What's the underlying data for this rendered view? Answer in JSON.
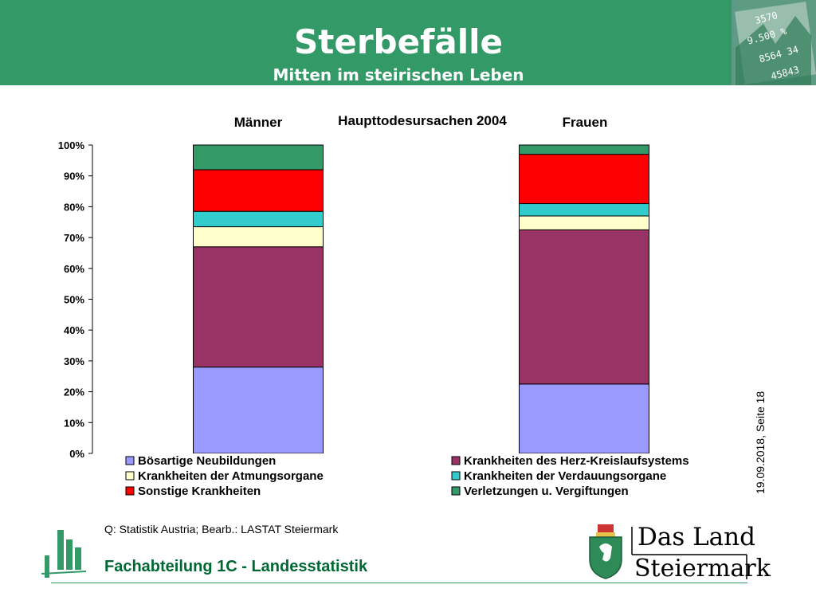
{
  "header": {
    "title": "Sterbefälle",
    "subtitle": "Mitten im steirischen Leben",
    "background": "#339966"
  },
  "chart_data": {
    "type": "bar",
    "stacked": true,
    "percent": true,
    "title": "Haupttodesursachen 2004",
    "categories": [
      "Männer",
      "Frauen"
    ],
    "ylim": [
      0,
      100
    ],
    "yticks": [
      "0%",
      "10%",
      "20%",
      "30%",
      "40%",
      "50%",
      "60%",
      "70%",
      "80%",
      "90%",
      "100%"
    ],
    "grid": false,
    "legend_position": "bottom",
    "series": [
      {
        "name": "Bösartige Neubildungen",
        "color": "#9999ff",
        "values": [
          28,
          22.5
        ]
      },
      {
        "name": "Krankheiten des Herz-Kreislaufsystems",
        "color": "#993366",
        "values": [
          39,
          50
        ]
      },
      {
        "name": "Krankheiten der Atmungsorgane",
        "color": "#ffffcc",
        "values": [
          6.5,
          4.5
        ]
      },
      {
        "name": "Krankheiten  der Verdauungsorgane",
        "color": "#33cccc",
        "values": [
          5,
          4
        ]
      },
      {
        "name": "Sonstige Krankheiten",
        "color": "#ff0000",
        "values": [
          13.5,
          16
        ]
      },
      {
        "name": "Verletzungen u. Vergiftungen",
        "color": "#339966",
        "values": [
          8,
          3
        ]
      }
    ]
  },
  "side_text": "19.09.2018, Seite 18",
  "footer": {
    "source": "Q: Statistik Austria; Bearb.: LASTAT Steiermark",
    "department": "Fachabteilung 1C -  Landesstatistik",
    "brand_line1": "Das Land",
    "brand_line2": "Steiermark"
  }
}
